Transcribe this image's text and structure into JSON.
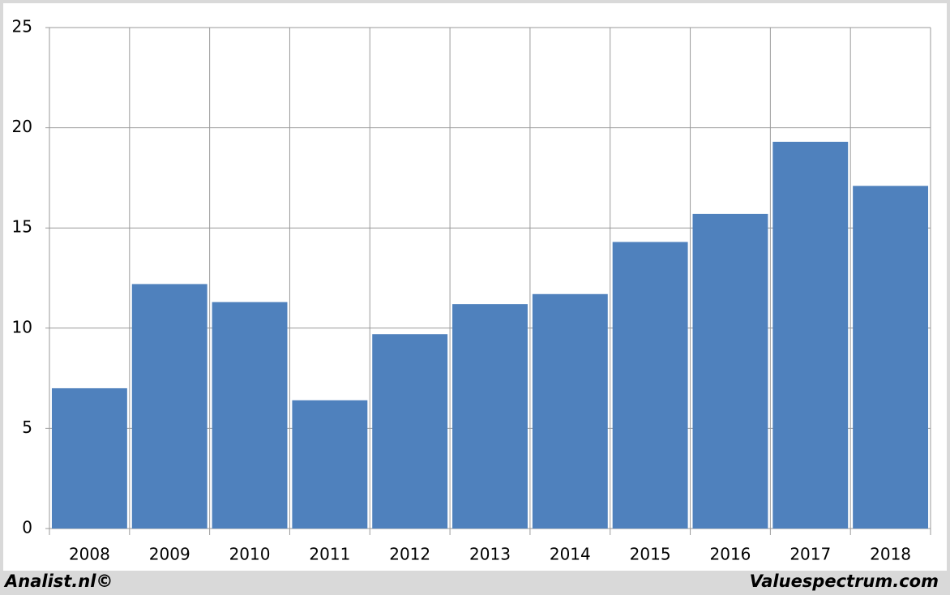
{
  "chart_data": {
    "type": "bar",
    "categories": [
      "2008",
      "2009",
      "2010",
      "2011",
      "2012",
      "2013",
      "2014",
      "2015",
      "2016",
      "2017",
      "2018"
    ],
    "values": [
      7.0,
      12.2,
      11.3,
      6.4,
      9.7,
      11.2,
      11.7,
      14.3,
      15.7,
      19.3,
      17.1
    ],
    "color": "#4f81bd",
    "ylim": [
      0,
      25
    ],
    "yticks": [
      0,
      5,
      10,
      15,
      20,
      25
    ],
    "grid": true,
    "annotations": [
      "Analist.nl©",
      "Valuespectrum.com"
    ]
  }
}
